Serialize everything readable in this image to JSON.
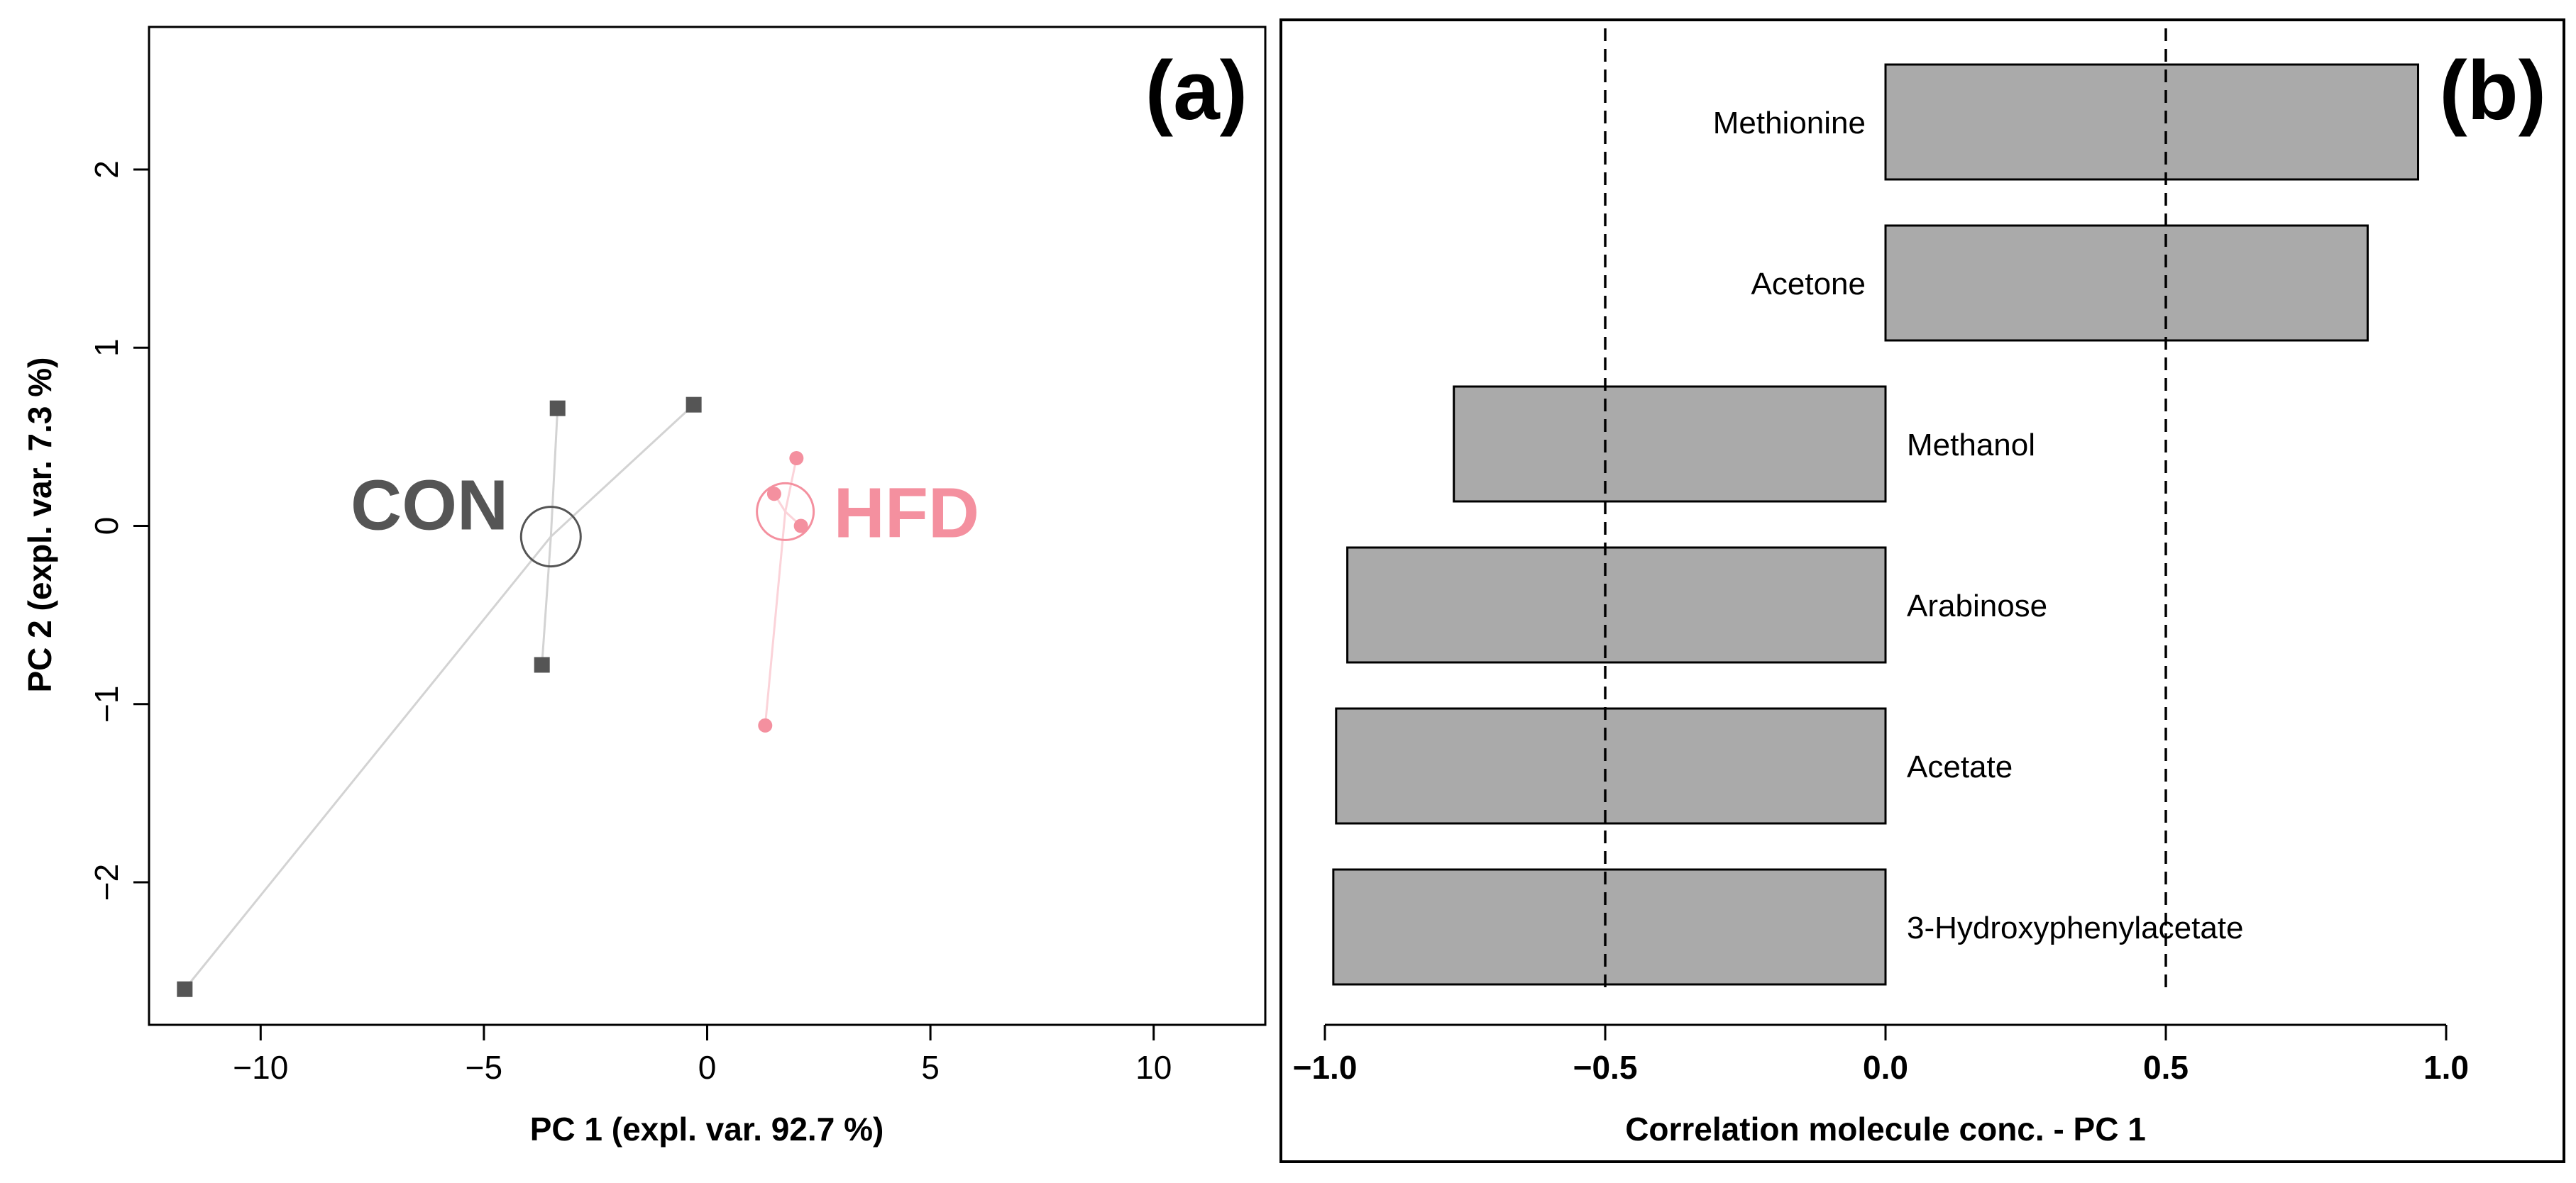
{
  "chart_data": [
    {
      "type": "scatter",
      "panel_label": "(a)",
      "xlabel": "PC 1 (expl. var. 92.7 %)",
      "ylabel": "PC 2 (expl. var. 7.3 %)",
      "xlim": [
        -12.5,
        12.5
      ],
      "ylim": [
        -2.8,
        2.8
      ],
      "xticks": [
        -10,
        -5,
        0,
        5,
        10
      ],
      "yticks": [
        -2,
        -1,
        0,
        1,
        2
      ],
      "xtick_labels": [
        "−10",
        "−5",
        "0",
        "5",
        "10"
      ],
      "ytick_labels": [
        "−2",
        "−1",
        "0",
        "1",
        "2"
      ],
      "groups": [
        {
          "name": "CON",
          "label": "CON",
          "marker": "square",
          "color": "#555555",
          "line_color": "#d3d3d3",
          "centroid": [
            -3.5,
            -0.06
          ],
          "points": [
            {
              "x": -3.35,
              "y": 0.66
            },
            {
              "x": -0.3,
              "y": 0.68
            },
            {
              "x": -3.7,
              "y": -0.78
            },
            {
              "x": -11.7,
              "y": -2.6
            }
          ]
        },
        {
          "name": "HFD",
          "label": "HFD",
          "marker": "circle",
          "color": "#f4909f",
          "line_color": "#fbd3d9",
          "centroid": [
            1.75,
            0.08
          ],
          "points": [
            {
              "x": 2.0,
              "y": 0.38
            },
            {
              "x": 1.5,
              "y": 0.18
            },
            {
              "x": 2.1,
              "y": 0.0
            },
            {
              "x": 1.3,
              "y": -1.12
            }
          ]
        }
      ]
    },
    {
      "type": "bar",
      "orientation": "horizontal",
      "panel_label": "(b)",
      "xlabel": "Correlation molecule conc. - PC 1",
      "xlim": [
        -1.0,
        1.0
      ],
      "xticks": [
        -1.0,
        -0.5,
        0.0,
        0.5,
        1.0
      ],
      "xtick_labels": [
        "−1.0",
        "−0.5",
        "0.0",
        "0.5",
        "1.0"
      ],
      "reference_lines": [
        -0.5,
        0.5
      ],
      "bar_color": "#aaaaaa",
      "categories": [
        "Methionine",
        "Acetone",
        "Methanol",
        "Arabinose",
        "Acetate",
        "3-Hydroxyphenylacetate"
      ],
      "values": [
        0.95,
        0.86,
        -0.77,
        -0.96,
        -0.98,
        -0.985
      ]
    }
  ]
}
